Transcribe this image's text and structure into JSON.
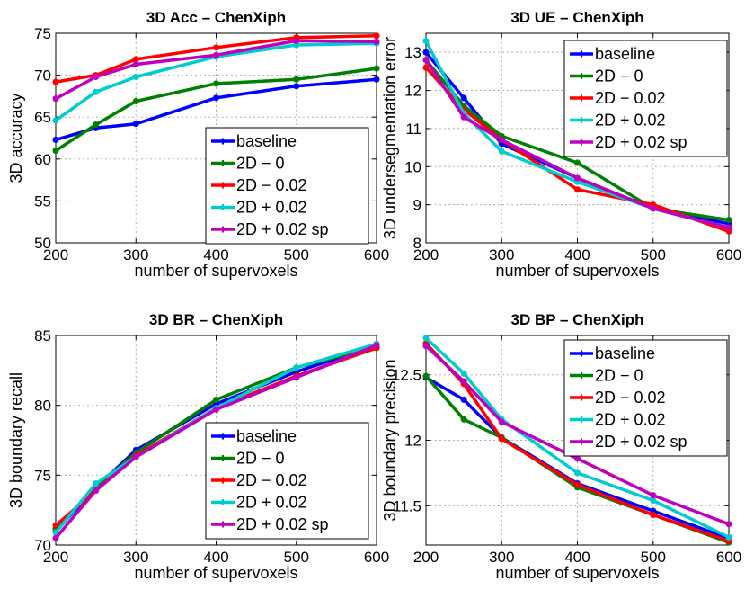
{
  "chart_data": [
    {
      "type": "line",
      "title": "3D Acc – ChenXiph",
      "xlabel": "number of supervoxels",
      "ylabel": "3D accuracy",
      "x": [
        200,
        250,
        300,
        400,
        500,
        600
      ],
      "xticks": [
        200,
        300,
        400,
        500,
        600
      ],
      "yticks": [
        50,
        55,
        60,
        65,
        70,
        75
      ],
      "xlim": [
        200,
        600
      ],
      "ylim": [
        50,
        75
      ],
      "grid": true,
      "legend_position": "bottom-right",
      "series": [
        {
          "name": "baseline",
          "color": "#0000ff",
          "values": [
            62.3,
            63.7,
            64.2,
            67.3,
            68.7,
            69.5
          ]
        },
        {
          "name": "2D − 0",
          "color": "#008000",
          "values": [
            61.0,
            64.1,
            66.9,
            69.0,
            69.5,
            70.8
          ]
        },
        {
          "name": "2D − 0.02",
          "color": "#ff0000",
          "values": [
            69.2,
            70.0,
            71.9,
            73.3,
            74.5,
            74.7
          ]
        },
        {
          "name": "2D + 0.02",
          "color": "#00cccc",
          "values": [
            64.6,
            68.0,
            69.8,
            72.2,
            73.6,
            73.8
          ]
        },
        {
          "name": "2D + 0.02 sp",
          "color": "#bf00bf",
          "values": [
            67.2,
            69.8,
            71.3,
            72.4,
            74.1,
            74.0
          ]
        }
      ]
    },
    {
      "type": "line",
      "title": "3D UE – ChenXiph",
      "xlabel": "number of supervoxels",
      "ylabel": "3D undersegmentation error",
      "x": [
        200,
        250,
        300,
        400,
        500,
        600
      ],
      "xticks": [
        200,
        300,
        400,
        500,
        600
      ],
      "yticks": [
        8,
        9,
        10,
        11,
        12,
        13
      ],
      "xlim": [
        200,
        600
      ],
      "ylim": [
        8,
        13.5
      ],
      "grid": true,
      "legend_position": "top-right",
      "series": [
        {
          "name": "baseline",
          "color": "#0000ff",
          "values": [
            13.0,
            11.8,
            10.6,
            9.7,
            8.9,
            8.5
          ]
        },
        {
          "name": "2D − 0",
          "color": "#008000",
          "values": [
            12.8,
            11.6,
            10.8,
            10.1,
            8.9,
            8.6
          ]
        },
        {
          "name": "2D − 0.02",
          "color": "#ff0000",
          "values": [
            12.6,
            11.5,
            10.7,
            9.4,
            9.0,
            8.3
          ]
        },
        {
          "name": "2D + 0.02",
          "color": "#00cccc",
          "values": [
            13.3,
            11.4,
            10.4,
            9.6,
            8.9,
            8.4
          ]
        },
        {
          "name": "2D + 0.02 sp",
          "color": "#bf00bf",
          "values": [
            12.8,
            11.3,
            10.7,
            9.7,
            8.9,
            8.4
          ]
        }
      ]
    },
    {
      "type": "line",
      "title": "3D BR – ChenXiph",
      "xlabel": "number of supervoxels",
      "ylabel": "3D boundary recall",
      "x": [
        200,
        250,
        300,
        400,
        500,
        600
      ],
      "xticks": [
        200,
        300,
        400,
        500,
        600
      ],
      "yticks": [
        70,
        75,
        80,
        85
      ],
      "xlim": [
        200,
        600
      ],
      "ylim": [
        70,
        85
      ],
      "grid": true,
      "legend_position": "bottom-right",
      "series": [
        {
          "name": "baseline",
          "color": "#0000ff",
          "values": [
            71.0,
            74.1,
            76.8,
            80.1,
            82.4,
            84.3
          ]
        },
        {
          "name": "2D − 0",
          "color": "#008000",
          "values": [
            71.2,
            74.1,
            76.6,
            80.4,
            82.7,
            84.2
          ]
        },
        {
          "name": "2D − 0.02",
          "color": "#ff0000",
          "values": [
            71.4,
            73.9,
            76.4,
            79.8,
            82.1,
            84.1
          ]
        },
        {
          "name": "2D + 0.02",
          "color": "#00cccc",
          "values": [
            70.9,
            74.4,
            76.3,
            79.8,
            82.7,
            84.4
          ]
        },
        {
          "name": "2D + 0.02 sp",
          "color": "#bf00bf",
          "values": [
            70.5,
            73.9,
            76.3,
            79.7,
            82.0,
            84.3
          ]
        }
      ]
    },
    {
      "type": "line",
      "title": "3D BP – ChenXiph",
      "xlabel": "number of supervoxels",
      "ylabel": "3D boundary precision",
      "x": [
        200,
        250,
        300,
        400,
        500,
        600
      ],
      "xticks": [
        200,
        300,
        400,
        500,
        600
      ],
      "yticks": [
        11.5,
        12,
        12.5
      ],
      "xlim": [
        200,
        600
      ],
      "ylim": [
        11.2,
        12.8
      ],
      "grid": true,
      "legend_position": "top-right",
      "series": [
        {
          "name": "baseline",
          "color": "#0000ff",
          "values": [
            12.48,
            12.31,
            12.02,
            11.67,
            11.46,
            11.25
          ]
        },
        {
          "name": "2D − 0",
          "color": "#008000",
          "values": [
            12.49,
            12.16,
            12.02,
            11.64,
            11.43,
            11.22
          ]
        },
        {
          "name": "2D − 0.02",
          "color": "#ff0000",
          "values": [
            12.74,
            12.43,
            12.01,
            11.66,
            11.43,
            11.23
          ]
        },
        {
          "name": "2D + 0.02",
          "color": "#00cccc",
          "values": [
            12.78,
            12.51,
            12.16,
            11.75,
            11.54,
            11.26
          ]
        },
        {
          "name": "2D + 0.02 sp",
          "color": "#bf00bf",
          "values": [
            12.72,
            12.45,
            12.14,
            11.86,
            11.58,
            11.36
          ]
        }
      ]
    }
  ]
}
